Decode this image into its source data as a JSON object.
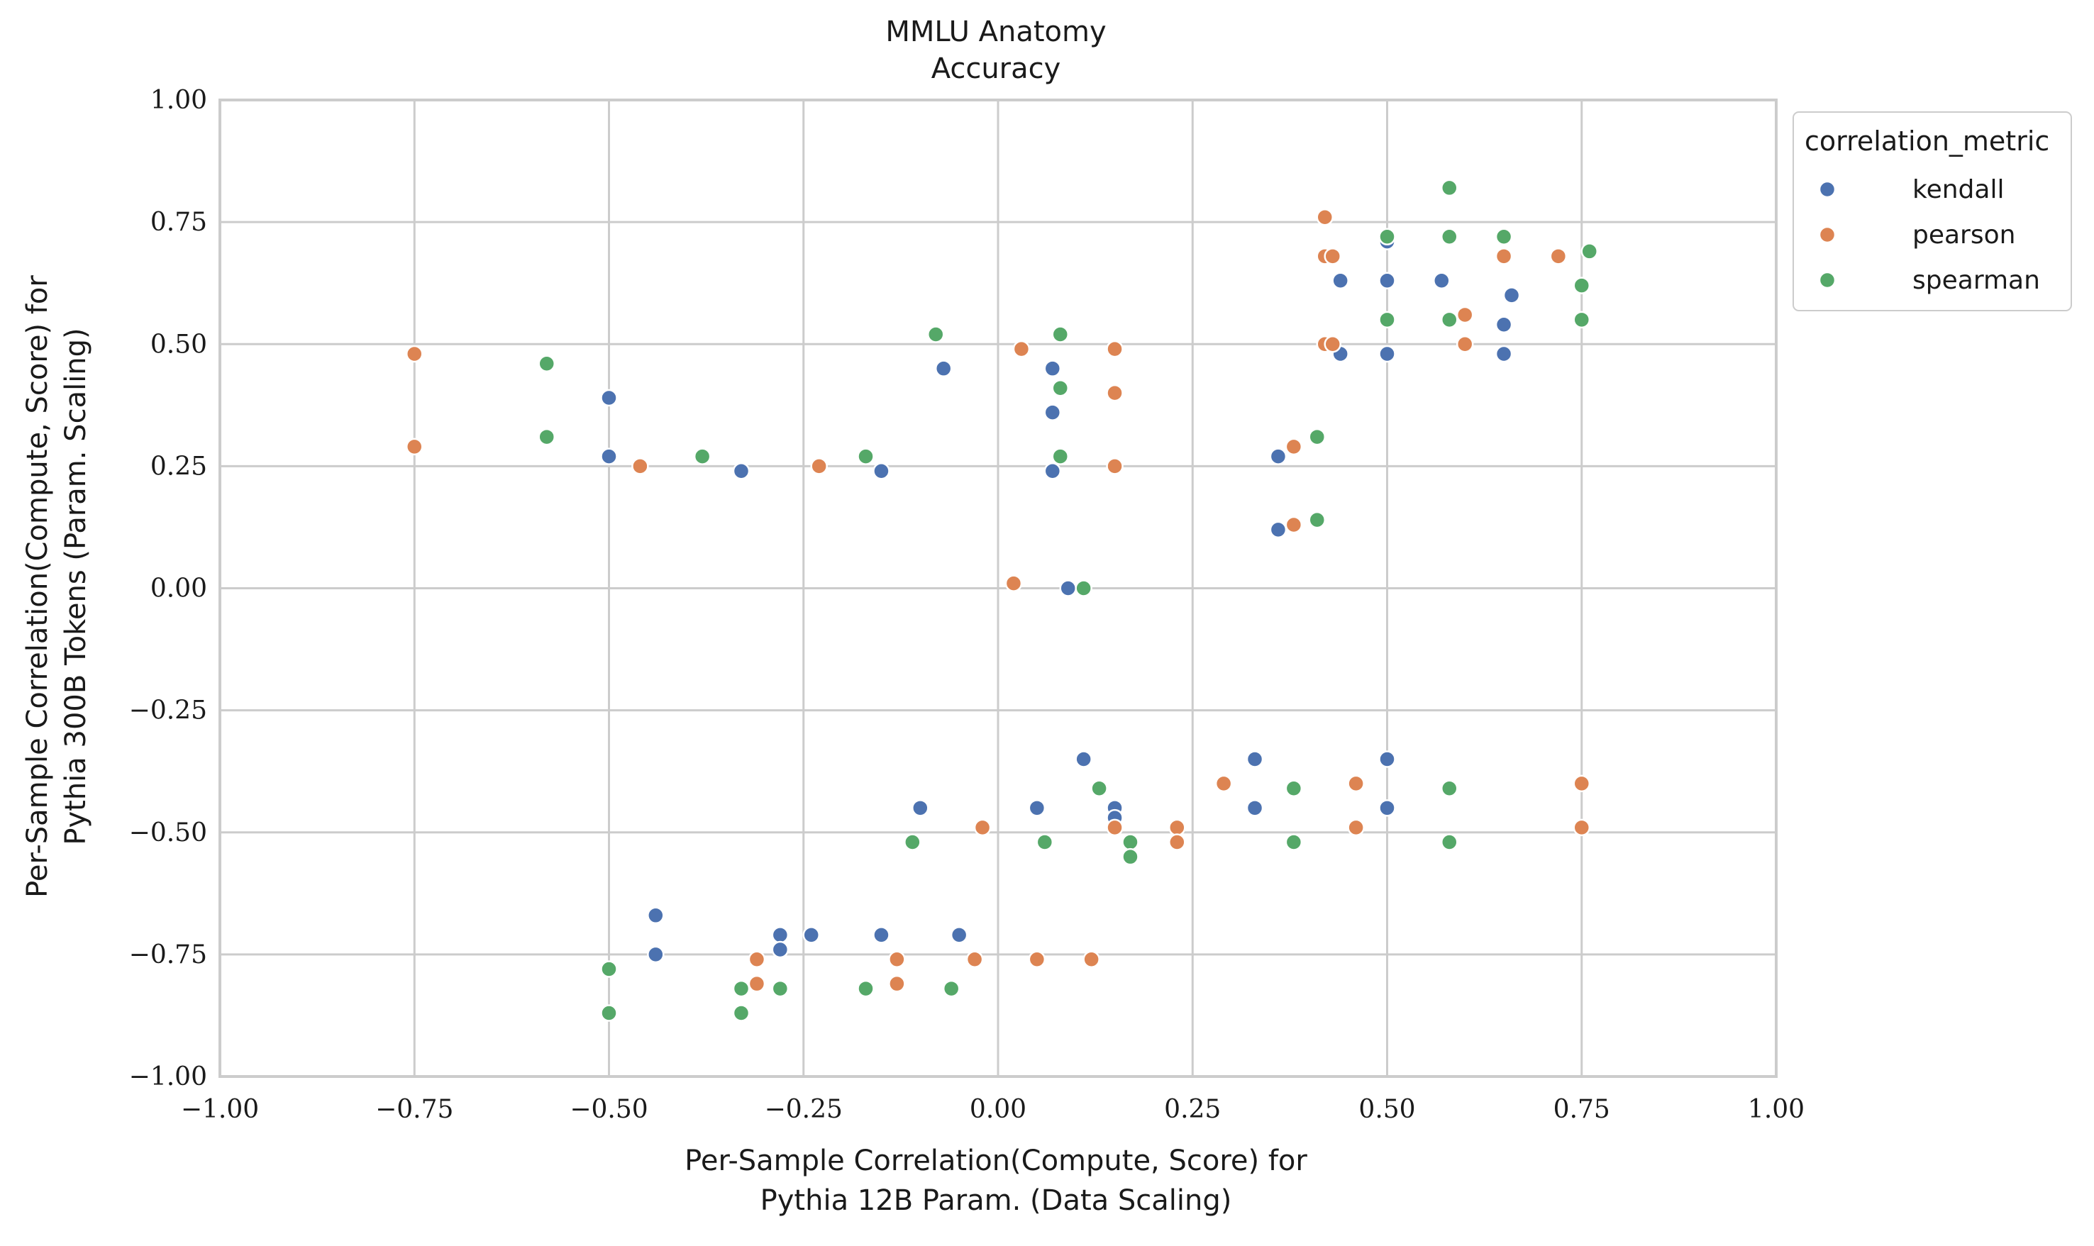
{
  "chart_data": {
    "type": "scatter",
    "title": "MMLU Anatomy",
    "subtitle": "Accuracy",
    "xlabel_line1": "Per-Sample Correlation(Compute, Score) for",
    "xlabel_line2": "Pythia 12B Param. (Data Scaling)",
    "ylabel_line1": "Per-Sample Correlation(Compute, Score) for",
    "ylabel_line2": "Pythia 300B Tokens (Param. Scaling)",
    "xlim": [
      -1.0,
      1.0
    ],
    "ylim": [
      -1.0,
      1.0
    ],
    "xticks": [
      "−1.00",
      "−0.75",
      "−0.50",
      "−0.25",
      "0.00",
      "0.25",
      "0.50",
      "0.75",
      "1.00"
    ],
    "yticks": [
      "−1.00",
      "−0.75",
      "−0.50",
      "−0.25",
      "0.00",
      "0.25",
      "0.50",
      "0.75",
      "1.00"
    ],
    "tick_values": [
      -1.0,
      -0.75,
      -0.5,
      -0.25,
      0.0,
      0.25,
      0.5,
      0.75,
      1.0
    ],
    "grid": true,
    "legend": {
      "title": "correlation_metric",
      "placement": "outside-top-right"
    },
    "series": [
      {
        "name": "kendall",
        "color": "#4c72b0",
        "points": [
          [
            -0.5,
            0.39
          ],
          [
            -0.5,
            0.27
          ],
          [
            -0.33,
            0.24
          ],
          [
            -0.15,
            0.24
          ],
          [
            -0.07,
            0.45
          ],
          [
            0.07,
            0.45
          ],
          [
            0.07,
            0.36
          ],
          [
            0.07,
            0.24
          ],
          [
            0.09,
            0.0
          ],
          [
            0.36,
            0.27
          ],
          [
            0.36,
            0.12
          ],
          [
            0.44,
            0.63
          ],
          [
            0.44,
            0.48
          ],
          [
            0.5,
            0.71
          ],
          [
            0.5,
            0.63
          ],
          [
            0.5,
            0.48
          ],
          [
            0.57,
            0.63
          ],
          [
            0.65,
            0.54
          ],
          [
            0.65,
            0.48
          ],
          [
            0.66,
            0.6
          ],
          [
            -0.44,
            -0.67
          ],
          [
            -0.44,
            -0.75
          ],
          [
            -0.28,
            -0.71
          ],
          [
            -0.28,
            -0.74
          ],
          [
            -0.24,
            -0.71
          ],
          [
            -0.15,
            -0.71
          ],
          [
            -0.05,
            -0.71
          ],
          [
            -0.1,
            -0.45
          ],
          [
            0.05,
            -0.45
          ],
          [
            0.11,
            -0.35
          ],
          [
            0.15,
            -0.45
          ],
          [
            0.15,
            -0.47
          ],
          [
            0.33,
            -0.35
          ],
          [
            0.33,
            -0.45
          ],
          [
            0.5,
            -0.35
          ],
          [
            0.5,
            -0.45
          ]
        ]
      },
      {
        "name": "pearson",
        "color": "#dd8452",
        "points": [
          [
            -0.75,
            0.48
          ],
          [
            -0.75,
            0.29
          ],
          [
            -0.46,
            0.25
          ],
          [
            -0.23,
            0.25
          ],
          [
            0.03,
            0.49
          ],
          [
            0.08,
            0.27
          ],
          [
            0.15,
            0.49
          ],
          [
            0.15,
            0.4
          ],
          [
            0.15,
            0.25
          ],
          [
            0.02,
            0.01
          ],
          [
            0.38,
            0.29
          ],
          [
            0.38,
            0.13
          ],
          [
            0.42,
            0.76
          ],
          [
            0.42,
            0.68
          ],
          [
            0.43,
            0.68
          ],
          [
            0.42,
            0.5
          ],
          [
            0.43,
            0.5
          ],
          [
            0.6,
            0.56
          ],
          [
            0.6,
            0.5
          ],
          [
            0.65,
            0.68
          ],
          [
            0.72,
            0.68
          ],
          [
            -0.31,
            -0.76
          ],
          [
            -0.31,
            -0.81
          ],
          [
            -0.13,
            -0.76
          ],
          [
            -0.13,
            -0.81
          ],
          [
            -0.03,
            -0.76
          ],
          [
            0.05,
            -0.76
          ],
          [
            0.12,
            -0.76
          ],
          [
            -0.02,
            -0.49
          ],
          [
            0.15,
            -0.49
          ],
          [
            0.23,
            -0.49
          ],
          [
            0.23,
            -0.52
          ],
          [
            0.29,
            -0.4
          ],
          [
            0.46,
            -0.4
          ],
          [
            0.46,
            -0.49
          ],
          [
            0.75,
            -0.4
          ],
          [
            0.75,
            -0.49
          ]
        ]
      },
      {
        "name": "spearman",
        "color": "#55a868",
        "points": [
          [
            -0.58,
            0.46
          ],
          [
            -0.58,
            0.31
          ],
          [
            -0.38,
            0.27
          ],
          [
            -0.17,
            0.27
          ],
          [
            -0.08,
            0.52
          ],
          [
            0.08,
            0.52
          ],
          [
            0.08,
            0.41
          ],
          [
            0.08,
            0.27
          ],
          [
            0.11,
            0.0
          ],
          [
            0.41,
            0.31
          ],
          [
            0.41,
            0.14
          ],
          [
            0.5,
            0.72
          ],
          [
            0.5,
            0.55
          ],
          [
            0.58,
            0.82
          ],
          [
            0.58,
            0.72
          ],
          [
            0.58,
            0.55
          ],
          [
            0.65,
            0.72
          ],
          [
            0.76,
            0.69
          ],
          [
            0.75,
            0.62
          ],
          [
            0.75,
            0.55
          ],
          [
            -0.5,
            -0.78
          ],
          [
            -0.5,
            -0.87
          ],
          [
            -0.33,
            -0.82
          ],
          [
            -0.33,
            -0.87
          ],
          [
            -0.28,
            -0.82
          ],
          [
            -0.17,
            -0.82
          ],
          [
            -0.06,
            -0.82
          ],
          [
            -0.11,
            -0.52
          ],
          [
            0.06,
            -0.52
          ],
          [
            0.13,
            -0.41
          ],
          [
            0.17,
            -0.52
          ],
          [
            0.17,
            -0.55
          ],
          [
            0.38,
            -0.41
          ],
          [
            0.38,
            -0.52
          ],
          [
            0.58,
            -0.41
          ],
          [
            0.58,
            -0.52
          ]
        ]
      }
    ]
  }
}
